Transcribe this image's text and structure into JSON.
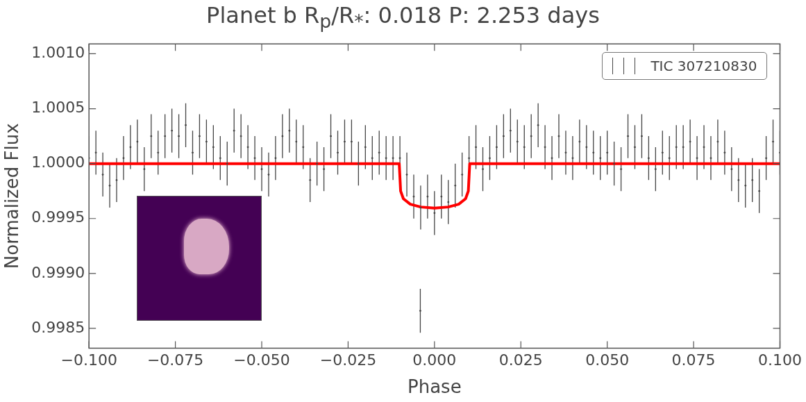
{
  "chart_data": {
    "type": "scatter",
    "title": "Planet b R$_{p}$/R$_{*}$: 0.018  P: 2.253 days",
    "xlabel": "Phase",
    "ylabel": "Normalized Flux",
    "xlim": [
      -0.1,
      0.1
    ],
    "ylim": [
      0.99832,
      1.00109
    ],
    "xticks": [
      {
        "value": -0.1,
        "label": "−0.100"
      },
      {
        "value": -0.075,
        "label": "−0.075"
      },
      {
        "value": -0.05,
        "label": "−0.050"
      },
      {
        "value": -0.025,
        "label": "−0.025"
      },
      {
        "value": 0,
        "label": "0.000"
      },
      {
        "value": 0.025,
        "label": "0.025"
      },
      {
        "value": 0.05,
        "label": "0.050"
      },
      {
        "value": 0.075,
        "label": "0.075"
      },
      {
        "value": 0.1,
        "label": "0.100"
      }
    ],
    "yticks": [
      {
        "value": 0.9985,
        "label": "0.9985"
      },
      {
        "value": 0.999,
        "label": "0.9990"
      },
      {
        "value": 0.9995,
        "label": "0.9995"
      },
      {
        "value": 1,
        "label": "1.0000"
      },
      {
        "value": 1.0005,
        "label": "1.0005"
      },
      {
        "value": 1.001,
        "label": "1.0010"
      }
    ],
    "legend": "top right",
    "series": [
      {
        "name": "TIC 307210830",
        "color": "#444444",
        "x": [
          -0.1,
          -0.098,
          -0.096,
          -0.094,
          -0.092,
          -0.09,
          -0.088,
          -0.086,
          -0.084,
          -0.082,
          -0.08,
          -0.078,
          -0.076,
          -0.074,
          -0.072,
          -0.07,
          -0.068,
          -0.066,
          -0.064,
          -0.062,
          -0.06,
          -0.058,
          -0.056,
          -0.054,
          -0.052,
          -0.05,
          -0.048,
          -0.046,
          -0.044,
          -0.042,
          -0.04,
          -0.038,
          -0.036,
          -0.034,
          -0.032,
          -0.03,
          -0.028,
          -0.026,
          -0.024,
          -0.022,
          -0.02,
          -0.018,
          -0.016,
          -0.014,
          -0.012,
          -0.01,
          -0.008,
          -0.006,
          -0.0041,
          -0.004,
          -0.002,
          0,
          0.002,
          0.004,
          0.006,
          0.008,
          0.01,
          0.012,
          0.014,
          0.016,
          0.018,
          0.02,
          0.022,
          0.024,
          0.026,
          0.028,
          0.03,
          0.032,
          0.034,
          0.036,
          0.038,
          0.04,
          0.042,
          0.044,
          0.046,
          0.048,
          0.05,
          0.052,
          0.054,
          0.056,
          0.058,
          0.06,
          0.062,
          0.064,
          0.066,
          0.068,
          0.07,
          0.072,
          0.074,
          0.076,
          0.078,
          0.08,
          0.082,
          0.084,
          0.086,
          0.088,
          0.09,
          0.092,
          0.094,
          0.096,
          0.098,
          0.1
        ],
        "values": [
          1.00005,
          1.0001,
          0.9999,
          0.9998,
          0.99985,
          1.00005,
          1.00015,
          1.0002,
          0.99995,
          1.00025,
          1.0001,
          1.00025,
          1.0003,
          1.00025,
          1.00035,
          1.0001,
          1.00025,
          1.0002,
          1.00015,
          1.00005,
          1.0,
          1.0003,
          1.00025,
          1.00015,
          1.00005,
          0.99995,
          0.9999,
          1.00005,
          1.00025,
          1.0003,
          1.0002,
          1.00015,
          0.99985,
          1.0,
          0.99995,
          1.00025,
          1.0001,
          1.0002,
          1.0002,
          1.0,
          1.00015,
          1.00005,
          1.0001,
          1.00005,
          1.00005,
          1.00005,
          0.9999,
          0.9997,
          0.99866,
          0.9996,
          0.9997,
          0.99955,
          0.9997,
          0.99965,
          0.9998,
          0.9999,
          1.00005,
          1.00015,
          0.99995,
          1.00005,
          1.00015,
          1.00025,
          1.0003,
          1.0002,
          1.00015,
          1.00025,
          1.00035,
          1.00015,
          1.00005,
          1.00025,
          1.0001,
          1.00005,
          1.0002,
          1.00015,
          1.0001,
          1.00005,
          1.0001,
          1.0,
          0.99995,
          1.00025,
          1.00015,
          1.00025,
          1.00005,
          0.99995,
          1.0001,
          1.00005,
          1.00015,
          1.00015,
          1.0002,
          1.00005,
          1.00015,
          1.00005,
          1.0002,
          1.0001,
          0.99995,
          0.99985,
          0.9998,
          0.99985,
          0.99975,
          1.00005,
          1.0002,
          1.0001
        ],
        "errors": [
          0.0002,
          0.0002,
          0.0002,
          0.0002,
          0.0002,
          0.0002,
          0.0002,
          0.0002,
          0.0002,
          0.0002,
          0.0002,
          0.0002,
          0.0002,
          0.0002,
          0.0002,
          0.0002,
          0.0002,
          0.0002,
          0.0002,
          0.0002,
          0.0002,
          0.0002,
          0.0002,
          0.0002,
          0.0002,
          0.0002,
          0.0002,
          0.0002,
          0.0002,
          0.0002,
          0.0002,
          0.0002,
          0.0002,
          0.0002,
          0.0002,
          0.0002,
          0.0002,
          0.0002,
          0.0002,
          0.0002,
          0.0002,
          0.0002,
          0.0002,
          0.0002,
          0.0002,
          0.0002,
          0.0002,
          0.0002,
          0.0002,
          0.0002,
          0.0002,
          0.0002,
          0.0002,
          0.0002,
          0.0002,
          0.0002,
          0.0002,
          0.0002,
          0.0002,
          0.0002,
          0.0002,
          0.0002,
          0.0002,
          0.0002,
          0.0002,
          0.0002,
          0.0002,
          0.0002,
          0.0002,
          0.0002,
          0.0002,
          0.0002,
          0.0002,
          0.0002,
          0.0002,
          0.0002,
          0.0002,
          0.0002,
          0.0002,
          0.0002,
          0.0002,
          0.0002,
          0.0002,
          0.0002,
          0.0002,
          0.0002,
          0.0002,
          0.0002,
          0.0002,
          0.0002,
          0.0002,
          0.0002,
          0.0002,
          0.0002,
          0.0002,
          0.0002,
          0.0002,
          0.0002,
          0.0002,
          0.0002,
          0.0002,
          0.0002
        ]
      },
      {
        "color": "#ff0000",
        "type": "line",
        "x": [
          -0.1,
          -0.0102,
          -0.0098,
          -0.009,
          -0.007,
          -0.004,
          0,
          0.004,
          0.007,
          0.009,
          0.0098,
          0.0102,
          0.1
        ],
        "values": [
          1.0,
          1.0,
          0.99975,
          0.99968,
          0.99963,
          0.999605,
          0.999594,
          0.999605,
          0.99963,
          0.99968,
          0.99975,
          1.0,
          1.0
        ]
      }
    ]
  }
}
